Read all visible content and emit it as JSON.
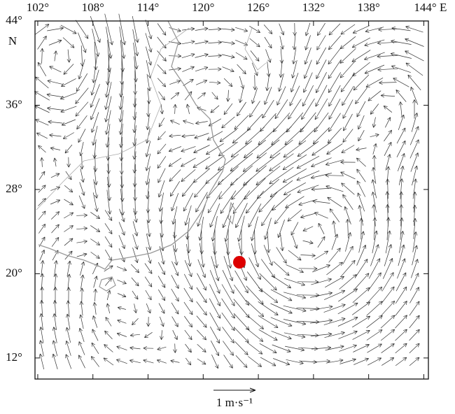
{
  "map": {
    "lon_range": [
      101.7,
      144.5
    ],
    "lat_range": [
      10,
      44
    ],
    "lon_ticks": [
      {
        "value": 102,
        "label": "102°"
      },
      {
        "value": 108,
        "label": "108°"
      },
      {
        "value": 114,
        "label": "114°"
      },
      {
        "value": 120,
        "label": "120°"
      },
      {
        "value": 126,
        "label": "126°"
      },
      {
        "value": 132,
        "label": "132°"
      },
      {
        "value": 138,
        "label": "138°"
      },
      {
        "value": 144,
        "label": "144° E"
      }
    ],
    "lat_ticks": [
      {
        "value": 44,
        "label": "44°"
      },
      {
        "value": 36,
        "label": "36°"
      },
      {
        "value": 28,
        "label": "28°"
      },
      {
        "value": 20,
        "label": "20°"
      },
      {
        "value": 12,
        "label": "12°"
      }
    ],
    "lat_unit": "N",
    "scale_label": "1 m·s⁻¹"
  }
}
